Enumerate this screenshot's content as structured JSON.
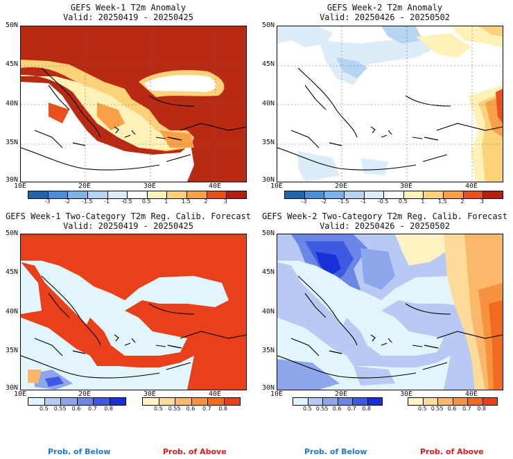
{
  "panels": [
    {
      "title": "GEFS Week-1 T2m Anomaly",
      "valid": "Valid: 20250419 - 20250425"
    },
    {
      "title": "GEFS Week-2 T2m Anomaly",
      "valid": "Valid: 20250426 - 20250502"
    },
    {
      "title": "GEFS Week-1 Two-Category T2m Reg. Calib. Forecast",
      "valid": "Valid: 20250419 - 20250425"
    },
    {
      "title": "GEFS Week-2 Two-Category T2m Reg. Calib. Forecast",
      "valid": "Valid: 20250426 - 20250502"
    }
  ],
  "lat_labels": [
    "50N",
    "45N",
    "40N",
    "35N",
    "30N"
  ],
  "lon_labels": [
    "10E",
    "20E",
    "30E",
    "40E"
  ],
  "anomaly_colorbar": {
    "labels": [
      "-3",
      "-2",
      "-1.5",
      "-1",
      "-0.5",
      "0.5",
      "1",
      "1.5",
      "2",
      "3"
    ],
    "colors": [
      "#2166ac",
      "#4a90d9",
      "#7fb2e6",
      "#b5d5f3",
      "#dcecf9",
      "#ffffff",
      "#fff2b8",
      "#fdd27a",
      "#f8a04a",
      "#e8501f",
      "#b71d10"
    ]
  },
  "prob_colorbars": {
    "below": {
      "labels": [
        "0.5",
        "0.55",
        "0.6",
        "0.7",
        "0.8"
      ],
      "colors": [
        "#dff3fb",
        "#b8c9f3",
        "#8ea6ec",
        "#6b86e6",
        "#3d5ae0",
        "#1a2fd8"
      ]
    },
    "above": {
      "labels": [
        "0.5",
        "0.55",
        "0.6",
        "0.7",
        "0.8"
      ],
      "colors": [
        "#fff3c4",
        "#fddb9a",
        "#fbb86b",
        "#f7923f",
        "#f06a1f",
        "#e8401a"
      ]
    }
  },
  "legend": {
    "below": "Prob. of Below",
    "above": "Prob. of Above"
  },
  "colors": {
    "below_text": "#1e78d8",
    "above_text": "#e21b1b",
    "sea": "#e2f5fb"
  }
}
